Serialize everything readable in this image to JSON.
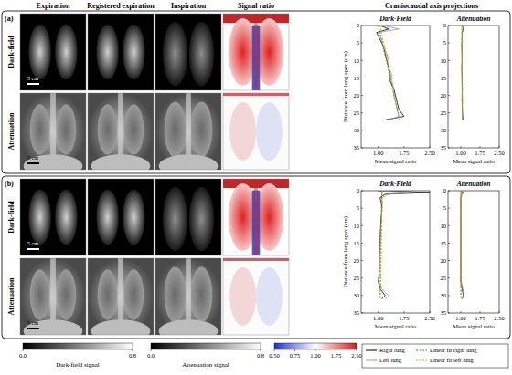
{
  "column_headers": [
    "Expiration",
    "Registered expiration",
    "Inspiration",
    "Signal ratio",
    "Craniocaudal axis projections"
  ],
  "panels": [
    {
      "label": "(a)",
      "rows": [
        {
          "label": "Dark-field",
          "scale_bar": "5 cm"
        },
        {
          "label": "Attenuation",
          "scale_bar": "5 cm"
        }
      ]
    },
    {
      "label": "(b)",
      "rows": [
        {
          "label": "Dark-field",
          "scale_bar": "5 cm"
        },
        {
          "label": "Attenuation",
          "scale_bar": "5 cm"
        }
      ]
    }
  ],
  "chart_data": [
    {
      "type": "line",
      "title": "Dark-Field",
      "xlabel": "Mean signal ratio",
      "ylabel": "Distance from lung apex (cm)",
      "orientation": "horizontal",
      "legend": "bottom",
      "y": [
        0,
        1,
        2,
        4,
        6,
        8,
        10,
        12,
        14,
        16,
        18,
        20,
        22,
        24,
        26,
        27
      ],
      "xlim": [
        0.5,
        2.5
      ],
      "ylim": [
        0,
        35
      ],
      "xticks": [
        {
          "value": 1,
          "label": "1.00"
        },
        {
          "value": 1.75,
          "label": "1.75"
        },
        {
          "value": 2.5,
          "label": "2.50"
        }
      ],
      "yticks": [
        0,
        5,
        10,
        15,
        20,
        25,
        30,
        35
      ],
      "series": [
        {
          "name": "Right lung",
          "color": "#000000",
          "line_style": "solid",
          "values": [
            1.05,
            1.3,
            0.95,
            1.05,
            1.15,
            1.2,
            1.25,
            1.3,
            1.35,
            1.35,
            1.45,
            1.5,
            1.55,
            1.6,
            1.75,
            1.2
          ]
        },
        {
          "name": "Left lung",
          "color": "#9a9a9a",
          "line_style": "solid",
          "values": [
            1.1,
            1.6,
            1.0,
            1.1,
            1.15,
            1.25,
            1.3,
            1.3,
            1.4,
            1.4,
            1.45,
            1.45,
            1.5,
            1.55,
            1.6,
            1.3
          ]
        },
        {
          "name": "Linear fit right lung",
          "color": "#2ca02c",
          "line_style": "dashed",
          "values": [
            1.0,
            1.02,
            1.05,
            1.09,
            1.14,
            1.18,
            1.23,
            1.28,
            1.32,
            1.37,
            1.41,
            1.46,
            1.51,
            1.55,
            1.6,
            1.62
          ]
        },
        {
          "name": "Linear fit left lung",
          "color": "#e69a00",
          "line_style": "dashed",
          "values": [
            1.05,
            1.07,
            1.09,
            1.13,
            1.18,
            1.22,
            1.26,
            1.3,
            1.34,
            1.39,
            1.43,
            1.47,
            1.51,
            1.55,
            1.6,
            1.62
          ]
        }
      ]
    },
    {
      "type": "line",
      "title": "Attenuation",
      "xlabel": "Mean signal ratio",
      "orientation": "horizontal",
      "y": [
        0,
        1,
        2,
        4,
        6,
        8,
        10,
        12,
        14,
        16,
        18,
        20,
        22,
        24,
        26,
        27
      ],
      "xlim": [
        0.5,
        2.5
      ],
      "ylim": [
        0,
        35
      ],
      "xticks": [
        {
          "value": 1,
          "label": "1.00"
        },
        {
          "value": 1.75,
          "label": "1.75"
        },
        {
          "value": 2.5,
          "label": "2.50"
        }
      ],
      "yticks": [
        0,
        5,
        10,
        15,
        20,
        25,
        30,
        35
      ],
      "series": [
        {
          "color": "#000000",
          "line_style": "solid",
          "values": [
            1.05,
            1.1,
            1.05,
            1.05,
            1.04,
            1.05,
            1.05,
            1.04,
            1.05,
            1.05,
            1.06,
            1.05,
            1.05,
            1.06,
            1.07,
            1.1
          ]
        },
        {
          "color": "#9a9a9a",
          "line_style": "solid",
          "values": [
            1.08,
            1.12,
            1.06,
            1.05,
            1.05,
            1.04,
            1.05,
            1.05,
            1.04,
            1.05,
            1.05,
            1.06,
            1.06,
            1.05,
            1.06,
            1.08
          ]
        },
        {
          "color": "#2ca02c",
          "line_style": "dashed",
          "values": [
            1.04,
            1.04,
            1.04,
            1.04,
            1.04,
            1.05,
            1.05,
            1.05,
            1.05,
            1.05,
            1.05,
            1.05,
            1.06,
            1.06,
            1.06,
            1.06
          ]
        },
        {
          "color": "#e69a00",
          "line_style": "dashed",
          "values": [
            1.05,
            1.05,
            1.05,
            1.05,
            1.05,
            1.05,
            1.05,
            1.05,
            1.05,
            1.05,
            1.05,
            1.06,
            1.06,
            1.06,
            1.06,
            1.06
          ]
        }
      ]
    },
    {
      "type": "line",
      "title": "Dark-Field",
      "xlabel": "Mean signal ratio",
      "ylabel": "Distance from lung apex (cm)",
      "orientation": "horizontal",
      "y": [
        0,
        0.5,
        1,
        2,
        4,
        6,
        8,
        10,
        12,
        14,
        16,
        18,
        20,
        22,
        24,
        26,
        28,
        30,
        31
      ],
      "xlim": [
        0.5,
        2.5
      ],
      "ylim": [
        0,
        35
      ],
      "xticks": [
        {
          "value": 1,
          "label": "1.00"
        },
        {
          "value": 1.75,
          "label": "1.75"
        },
        {
          "value": 2.5,
          "label": "2.50"
        }
      ],
      "yticks": [
        0,
        5,
        10,
        15,
        20,
        25,
        30,
        35
      ],
      "series": [
        {
          "color": "#000000",
          "line_style": "solid",
          "values": [
            1.0,
            2.5,
            1.2,
            1.05,
            1.1,
            1.1,
            1.08,
            1.07,
            1.06,
            1.05,
            1.05,
            1.04,
            1.03,
            1.03,
            1.02,
            1.0,
            1.05,
            1.2,
            1.1
          ]
        },
        {
          "color": "#9a9a9a",
          "line_style": "solid",
          "values": [
            1.05,
            1.9,
            1.3,
            1.1,
            1.12,
            1.1,
            1.1,
            1.08,
            1.07,
            1.06,
            1.05,
            1.05,
            1.04,
            1.04,
            1.03,
            1.02,
            1.1,
            1.3,
            1.2
          ]
        },
        {
          "color": "#2ca02c",
          "line_style": "dashed",
          "values": [
            1.1,
            1.1,
            1.1,
            1.1,
            1.09,
            1.09,
            1.09,
            1.08,
            1.08,
            1.08,
            1.07,
            1.07,
            1.07,
            1.06,
            1.06,
            1.06,
            1.05,
            1.05,
            1.05
          ]
        },
        {
          "color": "#e69a00",
          "line_style": "dashed",
          "values": [
            1.12,
            1.12,
            1.12,
            1.12,
            1.11,
            1.11,
            1.1,
            1.1,
            1.1,
            1.09,
            1.09,
            1.09,
            1.08,
            1.08,
            1.08,
            1.07,
            1.07,
            1.06,
            1.06
          ]
        }
      ]
    },
    {
      "type": "line",
      "title": "Attenuation",
      "xlabel": "Mean signal ratio",
      "orientation": "horizontal",
      "y": [
        0,
        0.5,
        1,
        2,
        4,
        6,
        8,
        10,
        12,
        14,
        16,
        18,
        20,
        22,
        24,
        26,
        28,
        30,
        31
      ],
      "xlim": [
        0.5,
        2.5
      ],
      "ylim": [
        0,
        35
      ],
      "xticks": [
        {
          "value": 1,
          "label": "1.00"
        },
        {
          "value": 1.75,
          "label": "1.75"
        },
        {
          "value": 2.5,
          "label": "2.50"
        }
      ],
      "yticks": [
        0,
        5,
        10,
        15,
        20,
        25,
        30,
        35
      ],
      "series": [
        {
          "color": "#000000",
          "line_style": "solid",
          "values": [
            1.0,
            1.1,
            1.02,
            1.0,
            1.0,
            1.0,
            1.0,
            1.0,
            1.0,
            1.0,
            1.0,
            1.0,
            1.0,
            1.0,
            1.0,
            1.0,
            1.05,
            1.1,
            1.05
          ]
        },
        {
          "color": "#9a9a9a",
          "line_style": "solid",
          "values": [
            1.02,
            1.15,
            1.05,
            1.02,
            1.0,
            1.0,
            1.01,
            1.0,
            1.0,
            1.0,
            1.0,
            1.0,
            1.0,
            1.0,
            1.0,
            1.02,
            1.08,
            1.12,
            1.05
          ]
        },
        {
          "color": "#2ca02c",
          "line_style": "dashed",
          "values": [
            1.0,
            1.0,
            1.0,
            1.0,
            1.0,
            1.0,
            1.0,
            1.0,
            1.0,
            1.0,
            1.0,
            1.0,
            1.0,
            1.0,
            1.0,
            1.0,
            1.0,
            1.0,
            1.0
          ]
        },
        {
          "color": "#e69a00",
          "line_style": "dashed",
          "values": [
            1.01,
            1.01,
            1.01,
            1.01,
            1.01,
            1.01,
            1.01,
            1.01,
            1.01,
            1.01,
            1.01,
            1.01,
            1.01,
            1.01,
            1.01,
            1.01,
            1.01,
            1.01,
            1.01
          ]
        }
      ]
    }
  ],
  "colorbars": [
    {
      "title": "Dark-field signal",
      "range": [
        0,
        0.8
      ],
      "ticks": [
        {
          "value": 0,
          "label": "0.0"
        },
        {
          "value": 0.8,
          "label": "0.8"
        }
      ],
      "colors": [
        "#000000",
        "#ffffff"
      ]
    },
    {
      "title": "Attenuation signal",
      "range": [
        0,
        0.8
      ],
      "ticks": [
        {
          "value": 0,
          "label": "0.0"
        },
        {
          "value": 0.8,
          "label": "0.8"
        }
      ],
      "colors": [
        "#000000",
        "#ffffff"
      ]
    },
    {
      "range": [
        0.5,
        2.5
      ],
      "ticks": [
        {
          "value": 0.5,
          "label": "0.50"
        },
        {
          "value": 0.75,
          "label": "0.75"
        },
        {
          "value": 1,
          "label": "1.00"
        },
        {
          "value": 1.75,
          "label": "1.75"
        },
        {
          "value": 2.5,
          "label": "2.50"
        }
      ],
      "colors": [
        "#1f2fd0",
        "#ffffff",
        "#d01f1f"
      ]
    }
  ]
}
